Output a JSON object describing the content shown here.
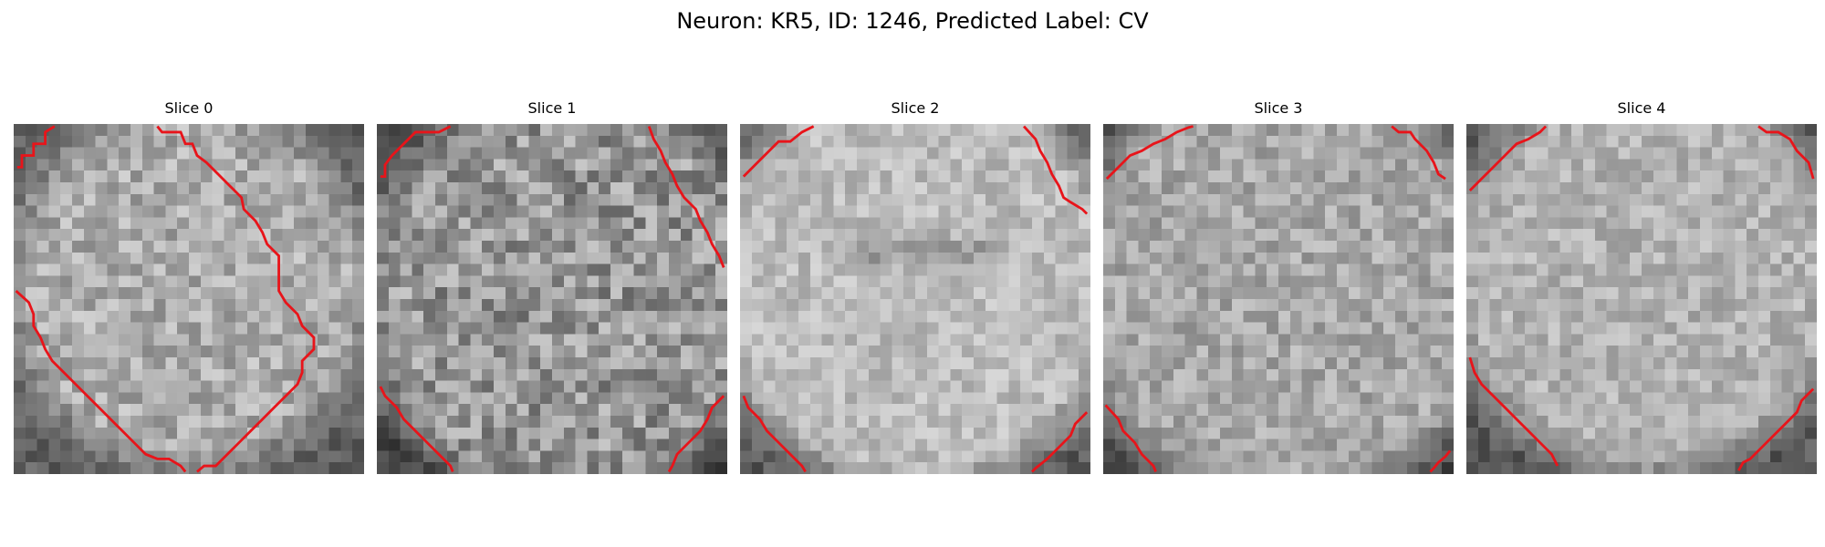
{
  "figure": {
    "title": "Neuron: KR5, ID: 1246, Predicted Label: CV"
  },
  "image_grid": {
    "rows": 30,
    "cols": 30,
    "colormap": "grayscale",
    "overlay_color": "#e8141a"
  },
  "panels": [
    {
      "title": "Slice 0"
    },
    {
      "title": "Slice 1"
    },
    {
      "title": "Slice 2"
    },
    {
      "title": "Slice 3"
    },
    {
      "title": "Slice 4"
    }
  ]
}
